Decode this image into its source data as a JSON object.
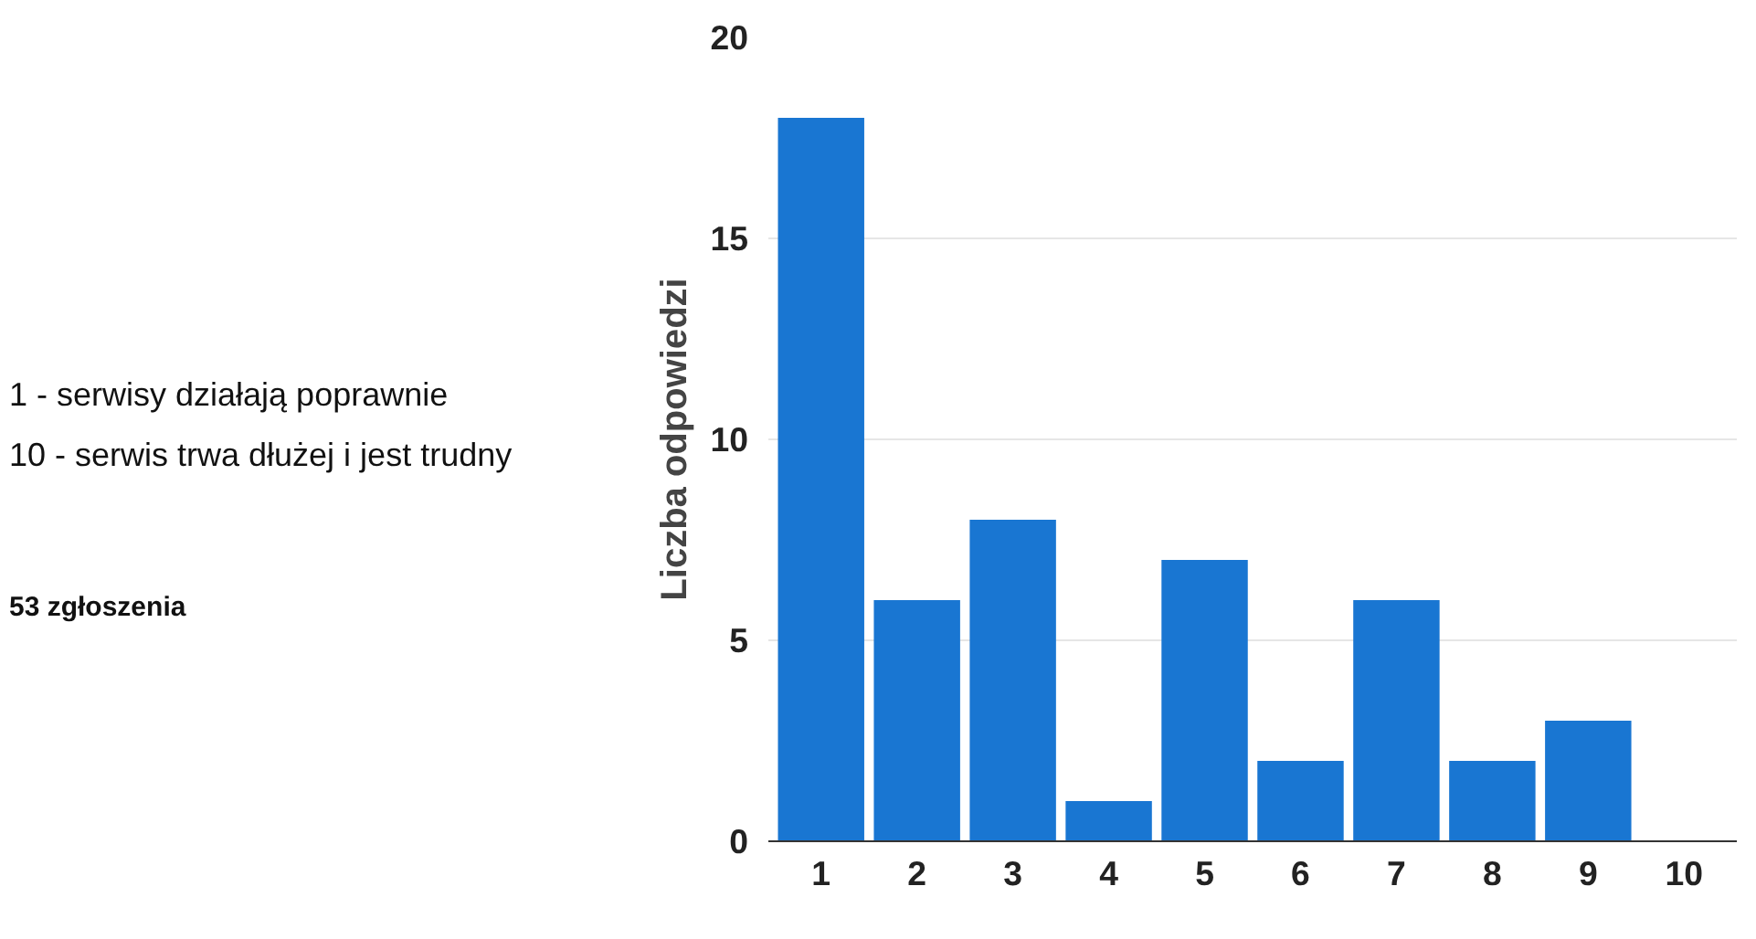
{
  "chart_data": {
    "type": "bar",
    "ylabel": "Liczba odpowiedzi",
    "categories": [
      "1",
      "2",
      "3",
      "4",
      "5",
      "6",
      "7",
      "8",
      "9",
      "10"
    ],
    "values": [
      18,
      6,
      8,
      1,
      7,
      2,
      6,
      2,
      3,
      0
    ],
    "color": "#1976d2",
    "ylim": [
      0,
      20
    ],
    "yticks": [
      0,
      5,
      10,
      15,
      20
    ],
    "grid": "y",
    "annotations": [
      "1 - serwisy działają poprawnie",
      "10 - serwis trwa dłużej i jest trudny",
      "53 zgłoszenia"
    ]
  }
}
